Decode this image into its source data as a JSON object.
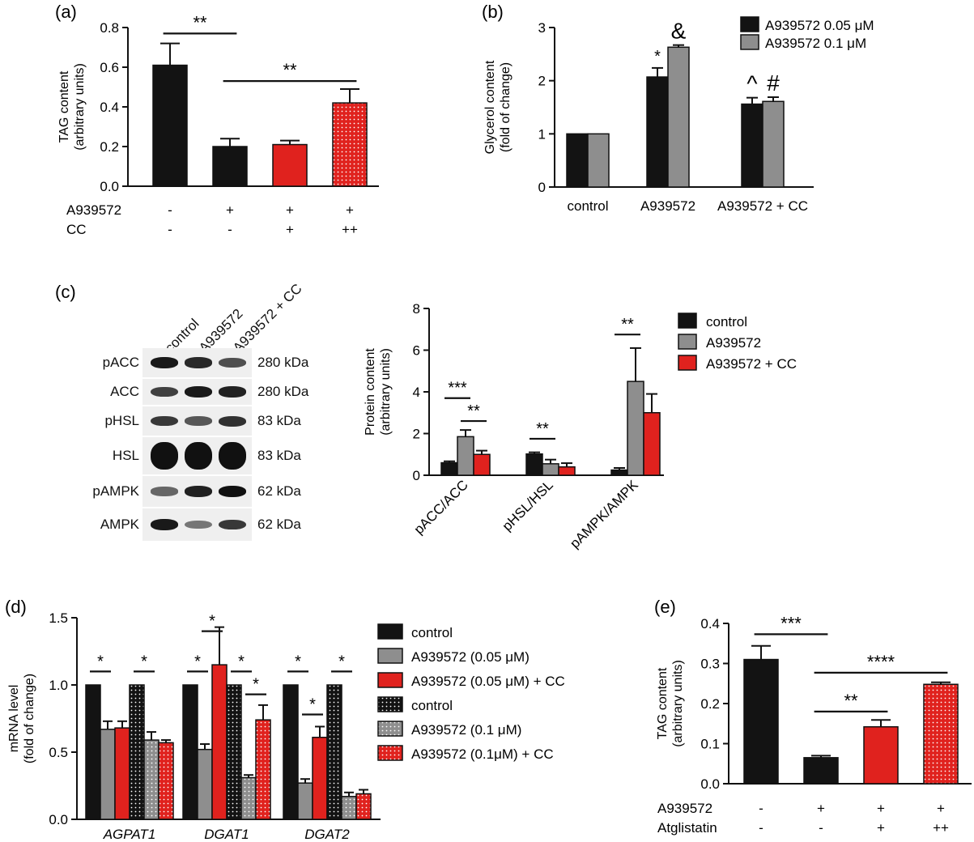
{
  "colors": {
    "black": "#131313",
    "gray": "#8e8e8e",
    "red": "#e0221e",
    "red_dark": "#9c1410"
  },
  "chart_data": [
    {
      "panel": "(a)",
      "type": "bar",
      "ylabel": [
        "TAG content",
        "(arbitrary units)"
      ],
      "ylim": [
        0,
        0.8
      ],
      "yticks": [
        "0.0",
        "0.2",
        "0.4",
        "0.6",
        "0.8"
      ],
      "values": [
        0.61,
        0.2,
        0.21,
        0.42
      ],
      "errors": [
        0.11,
        0.04,
        0.02,
        0.07
      ],
      "fills": [
        "black",
        "black",
        "red",
        "red-dots"
      ],
      "treatment_rows": [
        {
          "label": "A939572",
          "values": [
            "-",
            "+",
            "+",
            "+"
          ]
        },
        {
          "label": "CC",
          "values": [
            "-",
            "-",
            "+",
            "++"
          ]
        }
      ],
      "significance": [
        {
          "from": 0,
          "to": 1,
          "y": 0.77,
          "label": "**"
        },
        {
          "from": 1,
          "to": 3,
          "y": 0.53,
          "label": "**"
        }
      ]
    },
    {
      "panel": "(b)",
      "type": "bar",
      "ylabel": [
        "Glycerol content",
        "(fold of change)"
      ],
      "ylim": [
        0,
        3
      ],
      "yticks": [
        "0",
        "1",
        "2",
        "3"
      ],
      "categories": [
        "control",
        "A939572",
        "A939572 + CC"
      ],
      "series": [
        {
          "name": "A939572   0.05 μM",
          "values": [
            1.0,
            2.07,
            1.56
          ],
          "errors": [
            0.0,
            0.17,
            0.12
          ],
          "marks": [
            "",
            "*",
            "^"
          ]
        },
        {
          "name": "A939572   0.1 μM",
          "values": [
            1.0,
            2.63,
            1.61
          ],
          "errors": [
            0.0,
            0.04,
            0.08
          ],
          "marks": [
            "",
            "&",
            "#"
          ]
        }
      ]
    },
    {
      "panel": "(c)",
      "type": "bar",
      "ylabel": [
        "Protein content",
        "(arbitrary units)"
      ],
      "ylim": [
        0,
        8
      ],
      "yticks": [
        "0",
        "2",
        "4",
        "6",
        "8"
      ],
      "categories": [
        "pACC/ACC",
        "pHSL/HSL",
        "pAMPK/AMPK"
      ],
      "series": [
        {
          "name": "control",
          "values": [
            0.6,
            1.02,
            0.25
          ],
          "errors": [
            0.07,
            0.08,
            0.1
          ]
        },
        {
          "name": "A939572",
          "values": [
            1.85,
            0.55,
            4.5
          ],
          "errors": [
            0.32,
            0.2,
            1.6
          ]
        },
        {
          "name": "A939572 + CC",
          "values": [
            1.0,
            0.4,
            3.0
          ],
          "errors": [
            0.18,
            0.18,
            0.9
          ]
        }
      ],
      "significance": [
        {
          "group": 0,
          "from": 0,
          "to": 1,
          "y": 3.7,
          "label": "***"
        },
        {
          "group": 0,
          "from": 1,
          "to": 2,
          "y": 2.6,
          "label": "**"
        },
        {
          "group": 1,
          "from": 0,
          "to": 1,
          "y": 1.75,
          "label": "**"
        },
        {
          "group": 2,
          "from": 0,
          "to": 1,
          "y": 6.75,
          "label": "**"
        }
      ]
    },
    {
      "panel": "(d)",
      "type": "bar",
      "ylabel": [
        "mRNA level",
        "(fold of change)"
      ],
      "ylim": [
        0,
        1.5
      ],
      "yticks": [
        "0.0",
        "0.5",
        "1.0",
        "1.5"
      ],
      "categories": [
        "AGPAT1",
        "DGAT1",
        "DGAT2"
      ],
      "series": [
        {
          "name": "control",
          "values": [
            1.0,
            1.0,
            1.0
          ],
          "errors": [
            0,
            0,
            0
          ],
          "fill": "black"
        },
        {
          "name": "A939572 (0.05  μM)",
          "values": [
            0.67,
            0.52,
            0.27
          ],
          "errors": [
            0.06,
            0.04,
            0.03
          ],
          "fill": "gray"
        },
        {
          "name": "A939572 (0.05  μM) + CC",
          "values": [
            0.68,
            1.15,
            0.61
          ],
          "errors": [
            0.05,
            0.28,
            0.08
          ],
          "fill": "red"
        },
        {
          "name": "control",
          "values": [
            1.0,
            1.0,
            1.0
          ],
          "errors": [
            0,
            0,
            0
          ],
          "fill": "black-dots"
        },
        {
          "name": "A939572 (0.1 μM)",
          "values": [
            0.59,
            0.31,
            0.17
          ],
          "errors": [
            0.06,
            0.02,
            0.03
          ],
          "fill": "gray-dots"
        },
        {
          "name": "A939572 (0.1μM) + CC",
          "values": [
            0.57,
            0.74,
            0.19
          ],
          "errors": [
            0.02,
            0.11,
            0.03
          ],
          "fill": "red-dots"
        }
      ],
      "significance": [
        {
          "group": 0,
          "from": 0,
          "to": 1,
          "y": 1.1,
          "label": "*"
        },
        {
          "group": 0,
          "from": 3,
          "to": 4,
          "y": 1.1,
          "label": "*"
        },
        {
          "group": 1,
          "from": 0,
          "to": 1,
          "y": 1.1,
          "label": "*"
        },
        {
          "group": 1,
          "from": 1,
          "to": 2,
          "y": 1.4,
          "label": "*"
        },
        {
          "group": 1,
          "from": 3,
          "to": 4,
          "y": 1.1,
          "label": "*"
        },
        {
          "group": 1,
          "from": 4,
          "to": 5,
          "y": 0.93,
          "label": "*"
        },
        {
          "group": 2,
          "from": 0,
          "to": 1,
          "y": 1.1,
          "label": "*"
        },
        {
          "group": 2,
          "from": 1,
          "to": 2,
          "y": 0.78,
          "label": "*"
        },
        {
          "group": 2,
          "from": 3,
          "to": 4,
          "y": 1.1,
          "label": "*"
        }
      ]
    },
    {
      "panel": "(e)",
      "type": "bar",
      "ylabel": [
        "TAG content",
        "(arbitrary units)"
      ],
      "ylim": [
        0,
        0.4
      ],
      "yticks": [
        "0.0",
        "0.1",
        "0.2",
        "0.3",
        "0.4"
      ],
      "values": [
        0.31,
        0.065,
        0.142,
        0.248
      ],
      "errors": [
        0.034,
        0.005,
        0.017,
        0.005
      ],
      "fills": [
        "black",
        "black",
        "red",
        "red-dots"
      ],
      "treatment_rows": [
        {
          "label": "A939572",
          "values": [
            "-",
            "+",
            "+",
            "+"
          ]
        },
        {
          "label": "Atglistatin",
          "values": [
            "-",
            "-",
            "+",
            "++"
          ]
        }
      ],
      "significance": [
        {
          "from": 0,
          "to": 1,
          "y": 0.373,
          "label": "***"
        },
        {
          "from": 1,
          "to": 3,
          "y": 0.277,
          "label": "****"
        },
        {
          "from": 1,
          "to": 2,
          "y": 0.18,
          "label": "**"
        }
      ]
    }
  ],
  "western_blot": {
    "lanes": [
      "control",
      "A939572",
      "A939572 + CC"
    ],
    "rows": [
      {
        "protein": "pACC",
        "size": "280 kDa",
        "intensity": [
          0.95,
          0.85,
          0.6
        ]
      },
      {
        "protein": "ACC",
        "size": "280 kDa",
        "intensity": [
          0.7,
          0.95,
          0.9
        ]
      },
      {
        "protein": "pHSL",
        "size": "83 kDa",
        "intensity": [
          0.75,
          0.55,
          0.8
        ]
      },
      {
        "protein": "HSL",
        "size": "83 kDa",
        "intensity": [
          1.0,
          1.0,
          1.0
        ]
      },
      {
        "protein": "pAMPK",
        "size": "62 kDa",
        "intensity": [
          0.45,
          0.9,
          1.0
        ]
      },
      {
        "protein": "AMPK",
        "size": "62 kDa",
        "intensity": [
          0.95,
          0.35,
          0.75
        ]
      }
    ]
  }
}
